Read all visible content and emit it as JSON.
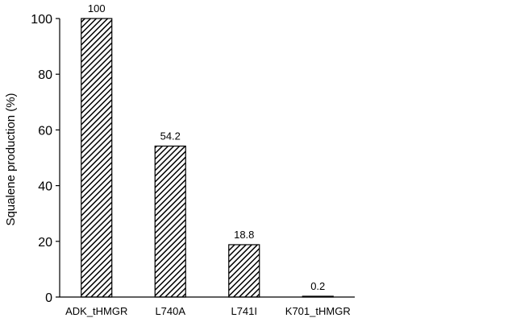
{
  "chart_data": {
    "type": "bar",
    "categories": [
      "ADK_tHMGR",
      "L740A",
      "L741I",
      "K701_tHMGR"
    ],
    "values": [
      100,
      54.2,
      18.8,
      0.2
    ],
    "data_labels": [
      "100",
      "54.2",
      "18.8",
      "0.2"
    ],
    "title": "",
    "xlabel": "",
    "ylabel": "Squalene production (%)",
    "ylim": [
      0,
      100
    ],
    "yticks": [
      0,
      20,
      40,
      60,
      80,
      100
    ],
    "grid": false,
    "legend": "none",
    "bar_fill": "hatched",
    "bar_color": "#000000",
    "background_color": "#ffffff"
  }
}
